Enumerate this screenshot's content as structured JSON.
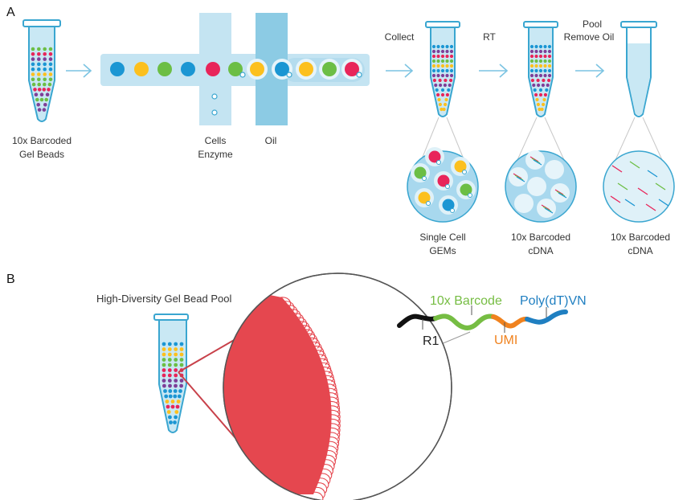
{
  "panels": {
    "a": "A",
    "b": "B"
  },
  "labels": {
    "gel_beads_1": "10x Barcoded",
    "gel_beads_2": "Gel Beads",
    "cells": "Cells",
    "enzyme": "Enzyme",
    "oil": "Oil",
    "collect": "Collect",
    "rt": "RT",
    "pool": "Pool",
    "remove_oil": "Remove Oil",
    "gems_1": "Single Cell",
    "gems_2": "GEMs",
    "cdna1_1": "10x Barcoded",
    "cdna1_2": "cDNA",
    "cdna2_1": "10x Barcoded",
    "cdna2_2": "cDNA",
    "pool_title": "High-Diversity Gel Bead Pool",
    "barcode": "10x Barcode",
    "polydt": "Poly(dT)VN",
    "r1": "R1",
    "umi": "UMI"
  },
  "colors": {
    "outline": "#3aa6d0",
    "liquid": "#c9e8f4",
    "channel": "#c4e4f2",
    "oil": "#8ccbe4",
    "bead_red": "#e8255a",
    "bead_green": "#6cbe45",
    "bead_yellow": "#fcc01e",
    "bead_blue": "#1b96d3",
    "bead_purple": "#7e3f98",
    "big_bead": "#e5474f",
    "r1": "#111111",
    "barcode": "#76bd43",
    "umi": "#f0821e",
    "polydt": "#1f7fc1"
  }
}
